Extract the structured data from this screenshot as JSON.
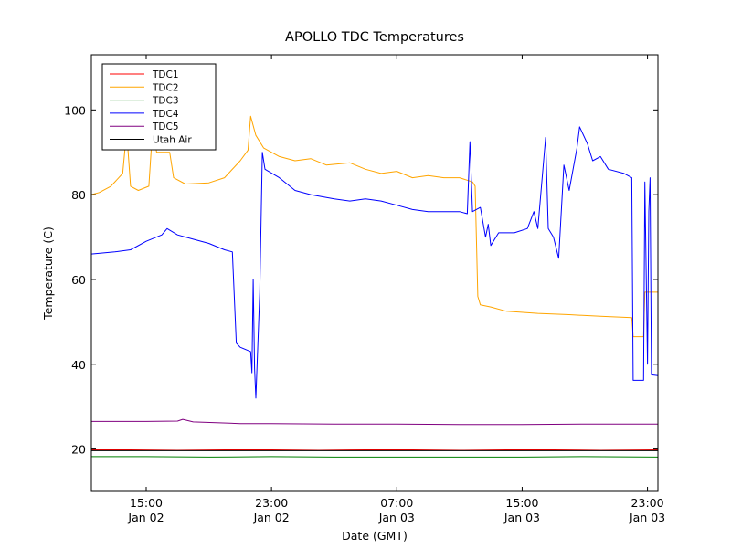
{
  "chart_data": {
    "type": "line",
    "title": "APOLLO TDC Temperatures",
    "xlabel": "Date (GMT)",
    "ylabel": "Temperature (C)",
    "xlim": [
      "2013-01-02T11:30",
      "2013-01-03T23:40"
    ],
    "ylim": [
      10,
      113
    ],
    "y_ticks": [
      20,
      40,
      60,
      80,
      100
    ],
    "x_ticks": [
      {
        "x": "2013-01-02T15:00",
        "time": "15:00",
        "date": "Jan 02"
      },
      {
        "x": "2013-01-02T23:00",
        "time": "23:00",
        "date": "Jan 02"
      },
      {
        "x": "2013-01-03T07:00",
        "time": "07:00",
        "date": "Jan 03"
      },
      {
        "x": "2013-01-03T15:00",
        "time": "15:00",
        "date": "Jan 03"
      },
      {
        "x": "2013-01-03T23:00",
        "time": "23:00",
        "date": "Jan 03"
      }
    ],
    "grid": false,
    "legend_position": "upper-left",
    "series": [
      {
        "name": "TDC1",
        "color": "#ff0000",
        "points": [
          [
            "2013-01-02T11:30",
            19.8
          ],
          [
            "2013-01-02T14:00",
            19.8
          ],
          [
            "2013-01-02T17:00",
            19.7
          ],
          [
            "2013-01-02T20:00",
            19.8
          ],
          [
            "2013-01-02T23:00",
            19.8
          ],
          [
            "2013-01-03T02:00",
            19.7
          ],
          [
            "2013-01-03T05:00",
            19.8
          ],
          [
            "2013-01-03T08:00",
            19.8
          ],
          [
            "2013-01-03T11:00",
            19.7
          ],
          [
            "2013-01-03T14:00",
            19.8
          ],
          [
            "2013-01-03T17:00",
            19.8
          ],
          [
            "2013-01-03T20:00",
            19.7
          ],
          [
            "2013-01-03T23:40",
            19.8
          ]
        ]
      },
      {
        "name": "TDC2",
        "color": "#ffa500",
        "points": [
          [
            "2013-01-02T11:30",
            80
          ],
          [
            "2013-01-02T12:00",
            80.5
          ],
          [
            "2013-01-02T12:45",
            82
          ],
          [
            "2013-01-02T13:30",
            85
          ],
          [
            "2013-01-02T13:45",
            95
          ],
          [
            "2013-01-02T14:00",
            82
          ],
          [
            "2013-01-02T14:30",
            81
          ],
          [
            "2013-01-02T15:10",
            82
          ],
          [
            "2013-01-02T15:25",
            96
          ],
          [
            "2013-01-02T15:40",
            90
          ],
          [
            "2013-01-02T16:30",
            90
          ],
          [
            "2013-01-02T16:45",
            84
          ],
          [
            "2013-01-02T17:30",
            82.5
          ],
          [
            "2013-01-02T19:00",
            82.8
          ],
          [
            "2013-01-02T20:00",
            84
          ],
          [
            "2013-01-02T21:00",
            88
          ],
          [
            "2013-01-02T21:30",
            90.5
          ],
          [
            "2013-01-02T21:40",
            98.5
          ],
          [
            "2013-01-02T22:00",
            94
          ],
          [
            "2013-01-02T22:30",
            91
          ],
          [
            "2013-01-02T23:30",
            89
          ],
          [
            "2013-01-03T00:30",
            88
          ],
          [
            "2013-01-03T01:30",
            88.5
          ],
          [
            "2013-01-03T02:30",
            87
          ],
          [
            "2013-01-03T04:00",
            87.5
          ],
          [
            "2013-01-03T05:00",
            86
          ],
          [
            "2013-01-03T06:00",
            85
          ],
          [
            "2013-01-03T07:00",
            85.5
          ],
          [
            "2013-01-03T08:00",
            84
          ],
          [
            "2013-01-03T09:00",
            84.5
          ],
          [
            "2013-01-03T10:00",
            84
          ],
          [
            "2013-01-03T11:00",
            84
          ],
          [
            "2013-01-03T11:50",
            83
          ],
          [
            "2013-01-03T12:00",
            82
          ],
          [
            "2013-01-03T12:10",
            56
          ],
          [
            "2013-01-03T12:20",
            54
          ],
          [
            "2013-01-03T13:00",
            53.5
          ],
          [
            "2013-01-03T14:00",
            52.5
          ],
          [
            "2013-01-03T16:00",
            52
          ],
          [
            "2013-01-03T18:00",
            51.7
          ],
          [
            "2013-01-03T20:00",
            51.3
          ],
          [
            "2013-01-03T22:00",
            51
          ],
          [
            "2013-01-03T22:05",
            46.5
          ],
          [
            "2013-01-03T22:45",
            46.5
          ],
          [
            "2013-01-03T22:50",
            57
          ],
          [
            "2013-01-03T23:40",
            57
          ]
        ]
      },
      {
        "name": "TDC3",
        "color": "#008000",
        "points": [
          [
            "2013-01-02T11:30",
            18.2
          ],
          [
            "2013-01-02T15:00",
            18.2
          ],
          [
            "2013-01-02T19:00",
            18.1
          ],
          [
            "2013-01-02T23:00",
            18.2
          ],
          [
            "2013-01-03T03:00",
            18.1
          ],
          [
            "2013-01-03T07:00",
            18.1
          ],
          [
            "2013-01-03T11:00",
            18.1
          ],
          [
            "2013-01-03T15:00",
            18.1
          ],
          [
            "2013-01-03T19:00",
            18.2
          ],
          [
            "2013-01-03T23:40",
            18.1
          ]
        ]
      },
      {
        "name": "TDC4",
        "color": "#0000ff",
        "points": [
          [
            "2013-01-02T11:30",
            66
          ],
          [
            "2013-01-02T13:00",
            66.5
          ],
          [
            "2013-01-02T14:00",
            67
          ],
          [
            "2013-01-02T15:00",
            69
          ],
          [
            "2013-01-02T16:00",
            70.5
          ],
          [
            "2013-01-02T16:20",
            72
          ],
          [
            "2013-01-02T17:00",
            70.5
          ],
          [
            "2013-01-02T18:00",
            69.5
          ],
          [
            "2013-01-02T19:00",
            68.5
          ],
          [
            "2013-01-02T20:00",
            67
          ],
          [
            "2013-01-02T20:30",
            66.5
          ],
          [
            "2013-01-02T20:45",
            45
          ],
          [
            "2013-01-02T21:00",
            44
          ],
          [
            "2013-01-02T21:40",
            43
          ],
          [
            "2013-01-02T21:45",
            38
          ],
          [
            "2013-01-02T21:50",
            60
          ],
          [
            "2013-01-02T21:55",
            39
          ],
          [
            "2013-01-02T22:00",
            32
          ],
          [
            "2013-01-02T22:15",
            57
          ],
          [
            "2013-01-02T22:25",
            90
          ],
          [
            "2013-01-02T22:35",
            86
          ],
          [
            "2013-01-02T23:30",
            84
          ],
          [
            "2013-01-03T00:30",
            81
          ],
          [
            "2013-01-03T01:30",
            80
          ],
          [
            "2013-01-03T03:00",
            79
          ],
          [
            "2013-01-03T04:00",
            78.5
          ],
          [
            "2013-01-03T05:00",
            79
          ],
          [
            "2013-01-03T06:00",
            78.5
          ],
          [
            "2013-01-03T07:00",
            77.5
          ],
          [
            "2013-01-03T08:00",
            76.5
          ],
          [
            "2013-01-03T09:00",
            76
          ],
          [
            "2013-01-03T10:00",
            76
          ],
          [
            "2013-01-03T11:00",
            76
          ],
          [
            "2013-01-03T11:30",
            75.5
          ],
          [
            "2013-01-03T11:40",
            92.5
          ],
          [
            "2013-01-03T11:50",
            76
          ],
          [
            "2013-01-03T12:20",
            77
          ],
          [
            "2013-01-03T12:40",
            70
          ],
          [
            "2013-01-03T12:50",
            73
          ],
          [
            "2013-01-03T13:00",
            68
          ],
          [
            "2013-01-03T13:30",
            71
          ],
          [
            "2013-01-03T14:30",
            71
          ],
          [
            "2013-01-03T15:20",
            72
          ],
          [
            "2013-01-03T15:45",
            76
          ],
          [
            "2013-01-03T16:00",
            72
          ],
          [
            "2013-01-03T16:30",
            93.5
          ],
          [
            "2013-01-03T16:40",
            72
          ],
          [
            "2013-01-03T17:00",
            70
          ],
          [
            "2013-01-03T17:20",
            65
          ],
          [
            "2013-01-03T17:40",
            87
          ],
          [
            "2013-01-03T18:00",
            81
          ],
          [
            "2013-01-03T18:30",
            91
          ],
          [
            "2013-01-03T18:40",
            96
          ],
          [
            "2013-01-03T19:10",
            92
          ],
          [
            "2013-01-03T19:30",
            88
          ],
          [
            "2013-01-03T20:00",
            89
          ],
          [
            "2013-01-03T20:30",
            86
          ],
          [
            "2013-01-03T21:30",
            85
          ],
          [
            "2013-01-03T22:00",
            84
          ],
          [
            "2013-01-03T22:05",
            36.2
          ],
          [
            "2013-01-03T22:45",
            36.2
          ],
          [
            "2013-01-03T22:50",
            83
          ],
          [
            "2013-01-03T23:00",
            40
          ],
          [
            "2013-01-03T23:05",
            76
          ],
          [
            "2013-01-03T23:10",
            84
          ],
          [
            "2013-01-03T23:15",
            37.5
          ],
          [
            "2013-01-03T23:40",
            37.3
          ]
        ]
      },
      {
        "name": "TDC5",
        "color": "#800080",
        "points": [
          [
            "2013-01-02T11:30",
            26.5
          ],
          [
            "2013-01-02T15:00",
            26.5
          ],
          [
            "2013-01-02T17:00",
            26.6
          ],
          [
            "2013-01-02T17:20",
            27.0
          ],
          [
            "2013-01-02T18:00",
            26.4
          ],
          [
            "2013-01-02T21:00",
            26.0
          ],
          [
            "2013-01-02T23:00",
            26.0
          ],
          [
            "2013-01-03T03:00",
            25.9
          ],
          [
            "2013-01-03T07:00",
            25.9
          ],
          [
            "2013-01-03T11:00",
            25.8
          ],
          [
            "2013-01-03T15:00",
            25.8
          ],
          [
            "2013-01-03T19:00",
            25.9
          ],
          [
            "2013-01-03T23:40",
            25.9
          ]
        ]
      },
      {
        "name": "Utah Air",
        "color": "#000000",
        "points": [
          [
            "2013-01-02T11:30",
            19.6
          ],
          [
            "2013-01-02T15:00",
            19.6
          ],
          [
            "2013-01-02T19:00",
            19.6
          ],
          [
            "2013-01-02T23:00",
            19.6
          ],
          [
            "2013-01-03T03:00",
            19.6
          ],
          [
            "2013-01-03T07:00",
            19.6
          ],
          [
            "2013-01-03T11:00",
            19.6
          ],
          [
            "2013-01-03T15:00",
            19.6
          ],
          [
            "2013-01-03T19:00",
            19.6
          ],
          [
            "2013-01-03T23:40",
            19.6
          ]
        ]
      }
    ]
  }
}
